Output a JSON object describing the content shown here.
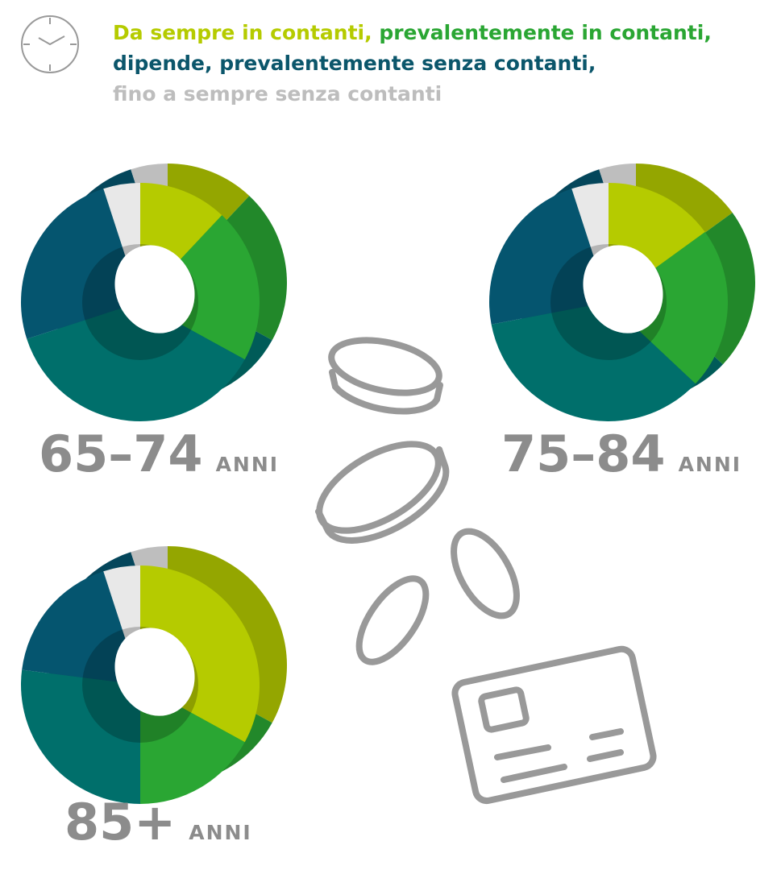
{
  "legend": [
    {
      "name": "Da sempre in contanti,",
      "color": "#b5cb00"
    },
    {
      "name": "prevalentemente in contanti,",
      "color": "#2aa633"
    },
    {
      "name": "dipende,",
      "color": "#006f6b"
    },
    {
      "name": "prevalentemente senza contanti,",
      "color": "#05556f"
    },
    {
      "name": "fino a sempre senza contanti",
      "color": "#e8e8e8"
    }
  ],
  "chart_data": [
    {
      "type": "pie",
      "label": "65–74",
      "unit": "ANNI",
      "values": [
        12,
        21,
        37,
        25,
        5
      ]
    },
    {
      "type": "pie",
      "label": "75–84",
      "unit": "ANNI",
      "values": [
        15,
        22,
        35,
        23,
        5
      ]
    },
    {
      "type": "pie",
      "label": "85+",
      "unit": "ANNI",
      "values": [
        33,
        17,
        27,
        18,
        5
      ]
    }
  ]
}
